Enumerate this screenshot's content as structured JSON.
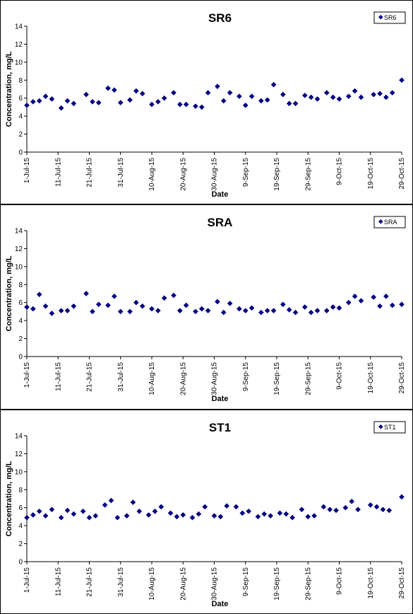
{
  "chart_data": [
    {
      "type": "scatter",
      "title": "SR6",
      "xlabel": "Date",
      "ylabel": "Concentration, mg/L",
      "ylim": [
        0,
        14
      ],
      "yticks": [
        0,
        2,
        4,
        6,
        8,
        10,
        12,
        14
      ],
      "xlim": [
        "2015-07-01",
        "2015-10-29"
      ],
      "xtick_labels": [
        "1-Jul-15",
        "11-Jul-15",
        "21-Jul-15",
        "31-Jul-15",
        "10-Aug-15",
        "20-Aug-15",
        "30-Aug-15",
        "9-Sep-15",
        "19-Sep-15",
        "29-Sep-15",
        "9-Oct-15",
        "19-Oct-15",
        "29-Oct-15"
      ],
      "legend_position": "top-right",
      "marker_color": "#000080",
      "series": [
        {
          "name": "SR6",
          "points": [
            [
              "2015-07-01",
              5.2
            ],
            [
              "2015-07-03",
              5.6
            ],
            [
              "2015-07-05",
              5.7
            ],
            [
              "2015-07-07",
              6.2
            ],
            [
              "2015-07-09",
              5.9
            ],
            [
              "2015-07-12",
              4.9
            ],
            [
              "2015-07-14",
              5.7
            ],
            [
              "2015-07-16",
              5.4
            ],
            [
              "2015-07-20",
              6.4
            ],
            [
              "2015-07-22",
              5.6
            ],
            [
              "2015-07-24",
              5.5
            ],
            [
              "2015-07-27",
              7.1
            ],
            [
              "2015-07-29",
              6.9
            ],
            [
              "2015-07-31",
              5.5
            ],
            [
              "2015-08-03",
              5.8
            ],
            [
              "2015-08-05",
              6.8
            ],
            [
              "2015-08-07",
              6.5
            ],
            [
              "2015-08-10",
              5.3
            ],
            [
              "2015-08-12",
              5.6
            ],
            [
              "2015-08-14",
              6.0
            ],
            [
              "2015-08-17",
              6.6
            ],
            [
              "2015-08-19",
              5.3
            ],
            [
              "2015-08-21",
              5.3
            ],
            [
              "2015-08-24",
              5.1
            ],
            [
              "2015-08-26",
              5.0
            ],
            [
              "2015-08-28",
              6.6
            ],
            [
              "2015-08-31",
              7.3
            ],
            [
              "2015-09-02",
              5.7
            ],
            [
              "2015-09-04",
              6.6
            ],
            [
              "2015-09-07",
              6.2
            ],
            [
              "2015-09-09",
              5.2
            ],
            [
              "2015-09-11",
              6.2
            ],
            [
              "2015-09-14",
              5.7
            ],
            [
              "2015-09-16",
              5.8
            ],
            [
              "2015-09-18",
              7.5
            ],
            [
              "2015-09-21",
              6.4
            ],
            [
              "2015-09-23",
              5.4
            ],
            [
              "2015-09-25",
              5.4
            ],
            [
              "2015-09-28",
              6.3
            ],
            [
              "2015-09-30",
              6.1
            ],
            [
              "2015-10-02",
              5.9
            ],
            [
              "2015-10-05",
              6.6
            ],
            [
              "2015-10-07",
              6.1
            ],
            [
              "2015-10-09",
              5.9
            ],
            [
              "2015-10-12",
              6.2
            ],
            [
              "2015-10-14",
              6.8
            ],
            [
              "2015-10-16",
              6.1
            ],
            [
              "2015-10-20",
              6.4
            ],
            [
              "2015-10-22",
              6.5
            ],
            [
              "2015-10-24",
              6.1
            ],
            [
              "2015-10-26",
              6.6
            ],
            [
              "2015-10-29",
              8.0
            ]
          ]
        }
      ]
    },
    {
      "type": "scatter",
      "title": "SRA",
      "xlabel": "Date",
      "ylabel": "Concentration, mg/L",
      "ylim": [
        0,
        14
      ],
      "yticks": [
        0,
        2,
        4,
        6,
        8,
        10,
        12,
        14
      ],
      "xlim": [
        "2015-07-01",
        "2015-10-29"
      ],
      "xtick_labels": [
        "1-Jul-15",
        "11-Jul-15",
        "21-Jul-15",
        "31-Jul-15",
        "10-Aug-15",
        "20-Aug-15",
        "30-Aug-15",
        "9-Sep-15",
        "19-Sep-15",
        "29-Sep-15",
        "9-Oct-15",
        "19-Oct-15",
        "29-Oct-15"
      ],
      "legend_position": "top-right",
      "marker_color": "#000080",
      "series": [
        {
          "name": "SRA",
          "points": [
            [
              "2015-07-01",
              5.5
            ],
            [
              "2015-07-03",
              5.3
            ],
            [
              "2015-07-05",
              6.9
            ],
            [
              "2015-07-07",
              5.6
            ],
            [
              "2015-07-09",
              4.8
            ],
            [
              "2015-07-12",
              5.1
            ],
            [
              "2015-07-14",
              5.1
            ],
            [
              "2015-07-16",
              5.6
            ],
            [
              "2015-07-20",
              7.0
            ],
            [
              "2015-07-22",
              5.0
            ],
            [
              "2015-07-24",
              5.8
            ],
            [
              "2015-07-27",
              5.7
            ],
            [
              "2015-07-29",
              6.7
            ],
            [
              "2015-07-31",
              5.0
            ],
            [
              "2015-08-03",
              5.0
            ],
            [
              "2015-08-05",
              6.0
            ],
            [
              "2015-08-07",
              5.6
            ],
            [
              "2015-08-10",
              5.3
            ],
            [
              "2015-08-12",
              5.1
            ],
            [
              "2015-08-14",
              6.5
            ],
            [
              "2015-08-17",
              6.8
            ],
            [
              "2015-08-19",
              5.1
            ],
            [
              "2015-08-21",
              5.7
            ],
            [
              "2015-08-24",
              5.0
            ],
            [
              "2015-08-26",
              5.3
            ],
            [
              "2015-08-28",
              5.1
            ],
            [
              "2015-08-31",
              6.1
            ],
            [
              "2015-09-02",
              4.9
            ],
            [
              "2015-09-04",
              5.9
            ],
            [
              "2015-09-07",
              5.3
            ],
            [
              "2015-09-09",
              5.1
            ],
            [
              "2015-09-11",
              5.4
            ],
            [
              "2015-09-14",
              4.9
            ],
            [
              "2015-09-16",
              5.1
            ],
            [
              "2015-09-18",
              5.1
            ],
            [
              "2015-09-21",
              5.8
            ],
            [
              "2015-09-23",
              5.2
            ],
            [
              "2015-09-25",
              4.9
            ],
            [
              "2015-09-28",
              5.5
            ],
            [
              "2015-09-30",
              4.9
            ],
            [
              "2015-10-02",
              5.1
            ],
            [
              "2015-10-05",
              5.1
            ],
            [
              "2015-10-07",
              5.5
            ],
            [
              "2015-10-09",
              5.4
            ],
            [
              "2015-10-12",
              6.0
            ],
            [
              "2015-10-14",
              6.7
            ],
            [
              "2015-10-16",
              6.2
            ],
            [
              "2015-10-20",
              6.6
            ],
            [
              "2015-10-22",
              5.6
            ],
            [
              "2015-10-24",
              6.7
            ],
            [
              "2015-10-26",
              5.7
            ],
            [
              "2015-10-29",
              5.8
            ]
          ]
        }
      ]
    },
    {
      "type": "scatter",
      "title": "ST1",
      "xlabel": "Date",
      "ylabel": "Concentration, mg/L",
      "ylim": [
        0,
        14
      ],
      "yticks": [
        0,
        2,
        4,
        6,
        8,
        10,
        12,
        14
      ],
      "xlim": [
        "2015-07-01",
        "2015-10-29"
      ],
      "xtick_labels": [
        "1-Jul-15",
        "11-Jul-15",
        "21-Jul-15",
        "31-Jul-15",
        "10-Aug-15",
        "20-Aug-15",
        "30-Aug-15",
        "9-Sep-15",
        "19-Sep-15",
        "29-Sep-15",
        "9-Oct-15",
        "19-Oct-15",
        "29-Oct-15"
      ],
      "legend_position": "top-right",
      "marker_color": "#000080",
      "series": [
        {
          "name": "ST1",
          "points": [
            [
              "2015-07-01",
              4.9
            ],
            [
              "2015-07-03",
              5.2
            ],
            [
              "2015-07-05",
              5.6
            ],
            [
              "2015-07-07",
              5.1
            ],
            [
              "2015-07-09",
              5.8
            ],
            [
              "2015-07-12",
              4.9
            ],
            [
              "2015-07-14",
              5.7
            ],
            [
              "2015-07-16",
              5.3
            ],
            [
              "2015-07-19",
              5.6
            ],
            [
              "2015-07-21",
              4.9
            ],
            [
              "2015-07-23",
              5.1
            ],
            [
              "2015-07-26",
              6.3
            ],
            [
              "2015-07-28",
              6.8
            ],
            [
              "2015-07-30",
              4.9
            ],
            [
              "2015-08-02",
              5.1
            ],
            [
              "2015-08-04",
              6.6
            ],
            [
              "2015-08-06",
              5.6
            ],
            [
              "2015-08-09",
              5.2
            ],
            [
              "2015-08-11",
              5.6
            ],
            [
              "2015-08-13",
              6.1
            ],
            [
              "2015-08-16",
              5.4
            ],
            [
              "2015-08-18",
              5.0
            ],
            [
              "2015-08-20",
              5.2
            ],
            [
              "2015-08-23",
              4.9
            ],
            [
              "2015-08-25",
              5.3
            ],
            [
              "2015-08-27",
              6.1
            ],
            [
              "2015-08-30",
              5.1
            ],
            [
              "2015-09-01",
              5.0
            ],
            [
              "2015-09-03",
              6.2
            ],
            [
              "2015-09-06",
              6.1
            ],
            [
              "2015-09-08",
              5.4
            ],
            [
              "2015-09-10",
              5.6
            ],
            [
              "2015-09-13",
              5.0
            ],
            [
              "2015-09-15",
              5.3
            ],
            [
              "2015-09-17",
              5.1
            ],
            [
              "2015-09-20",
              5.4
            ],
            [
              "2015-09-22",
              5.3
            ],
            [
              "2015-09-24",
              4.9
            ],
            [
              "2015-09-27",
              5.8
            ],
            [
              "2015-09-29",
              5.0
            ],
            [
              "2015-10-01",
              5.1
            ],
            [
              "2015-10-04",
              6.1
            ],
            [
              "2015-10-06",
              5.8
            ],
            [
              "2015-10-08",
              5.7
            ],
            [
              "2015-10-11",
              6.0
            ],
            [
              "2015-10-13",
              6.7
            ],
            [
              "2015-10-15",
              5.8
            ],
            [
              "2015-10-19",
              6.3
            ],
            [
              "2015-10-21",
              6.1
            ],
            [
              "2015-10-23",
              5.8
            ],
            [
              "2015-10-25",
              5.7
            ],
            [
              "2015-10-29",
              7.2
            ]
          ]
        }
      ]
    }
  ]
}
